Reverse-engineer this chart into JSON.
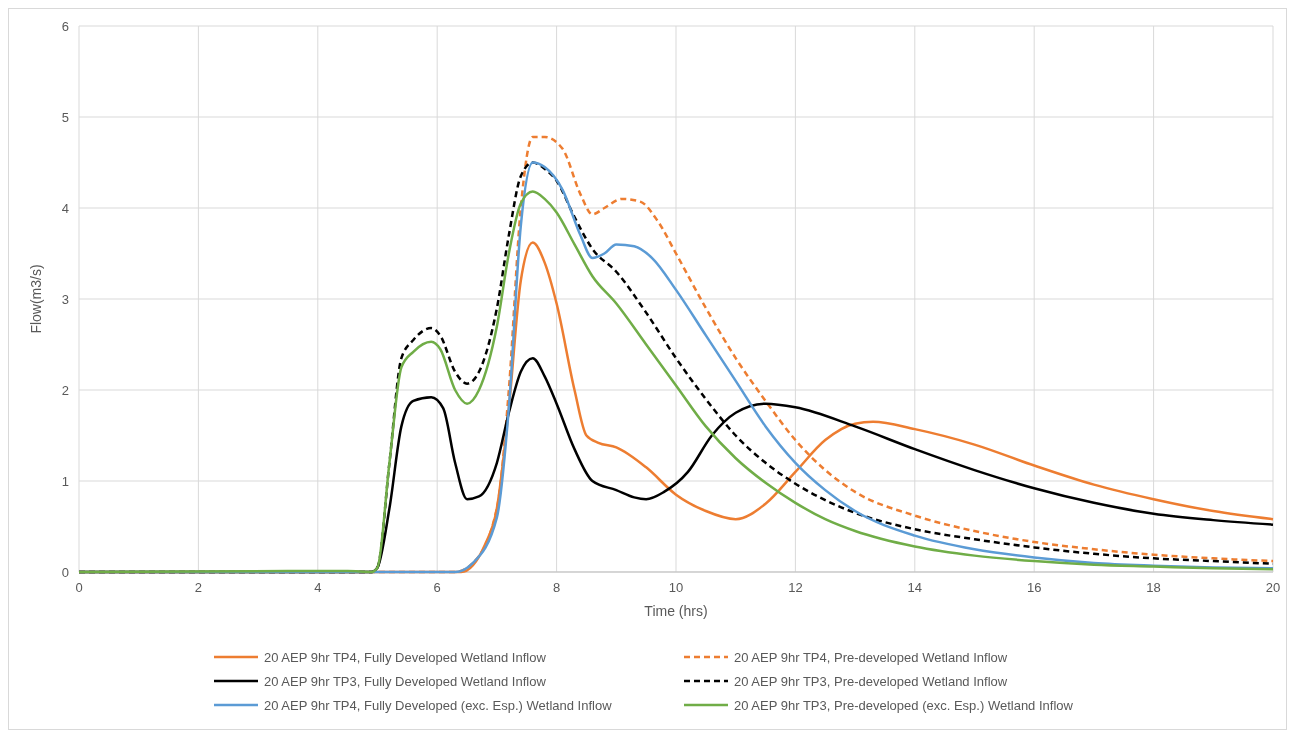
{
  "chart_data": {
    "type": "line",
    "xlabel": "Time (hrs)",
    "ylabel": "Flow(m3/s)",
    "xlim": [
      0,
      20
    ],
    "xticks": [
      0,
      2,
      4,
      6,
      8,
      10,
      12,
      14,
      16,
      18,
      20
    ],
    "ylim": [
      0,
      6
    ],
    "yticks": [
      0,
      1,
      2,
      3,
      4,
      5,
      6
    ],
    "grid": true,
    "legend": "bottom",
    "marker": "none",
    "series": [
      {
        "name": "20 AEP 9hr TP4, Fully Developed Wetland Inflow",
        "color": "#ed7d31",
        "line_style": "solid",
        "x": [
          0,
          4,
          6.4,
          6.8,
          7.0,
          7.2,
          7.4,
          7.6,
          7.8,
          8.0,
          8.3,
          8.5,
          8.7,
          9.0,
          9.5,
          10,
          10.5,
          11,
          11.5,
          12,
          12.5,
          13,
          13.3,
          14,
          15,
          16,
          17,
          18,
          19,
          20
        ],
        "values": [
          0,
          0,
          0,
          0.3,
          0.7,
          1.8,
          3.2,
          3.62,
          3.4,
          2.95,
          2.0,
          1.5,
          1.42,
          1.37,
          1.15,
          0.85,
          0.67,
          0.58,
          0.75,
          1.1,
          1.45,
          1.63,
          1.65,
          1.57,
          1.4,
          1.17,
          0.96,
          0.8,
          0.67,
          0.58
        ]
      },
      {
        "name": "20 AEP 9hr TP4, Pre-developed Wetland Inflow",
        "color": "#ed7d31",
        "line_style": "dashed",
        "x": [
          0,
          6.3,
          6.6,
          7.0,
          7.2,
          7.4,
          7.6,
          7.8,
          8.1,
          8.4,
          8.6,
          8.8,
          9.1,
          9.4,
          9.7,
          10,
          10.5,
          11,
          11.5,
          12,
          12.5,
          13,
          14,
          15,
          16,
          17,
          18,
          19,
          20
        ],
        "values": [
          0,
          0,
          0.1,
          0.7,
          2.0,
          4.0,
          4.78,
          4.78,
          4.65,
          4.15,
          3.93,
          4.0,
          4.1,
          4.07,
          3.85,
          3.5,
          2.9,
          2.35,
          1.88,
          1.45,
          1.12,
          0.88,
          0.62,
          0.45,
          0.33,
          0.25,
          0.19,
          0.15,
          0.12
        ]
      },
      {
        "name": "20 AEP 9hr TP3, Fully Developed Wetland Inflow",
        "color": "#000000",
        "line_style": "solid",
        "x": [
          0,
          4.9,
          5.0,
          5.2,
          5.4,
          5.6,
          5.9,
          6.1,
          6.3,
          6.5,
          6.7,
          7.0,
          7.2,
          7.4,
          7.6,
          7.8,
          8.0,
          8.3,
          8.6,
          9.0,
          9.3,
          9.5,
          9.8,
          10.2,
          10.6,
          11,
          11.5,
          12,
          13,
          14,
          15,
          16,
          17,
          18,
          19,
          20
        ],
        "values": [
          0,
          0,
          0.05,
          0.7,
          1.6,
          1.88,
          1.92,
          1.8,
          1.2,
          0.8,
          0.83,
          1.2,
          1.75,
          2.2,
          2.35,
          2.15,
          1.85,
          1.35,
          1.0,
          0.9,
          0.82,
          0.8,
          0.88,
          1.1,
          1.5,
          1.75,
          1.85,
          1.81,
          1.6,
          1.35,
          1.12,
          0.92,
          0.76,
          0.64,
          0.57,
          0.52
        ]
      },
      {
        "name": "20 AEP 9hr TP3, Pre-developed Wetland Inflow",
        "color": "#000000",
        "line_style": "dashed",
        "x": [
          0,
          4.9,
          5.0,
          5.2,
          5.4,
          5.6,
          5.9,
          6.05,
          6.3,
          6.5,
          6.7,
          7.0,
          7.2,
          7.4,
          7.6,
          7.8,
          8.0,
          8.3,
          8.6,
          9.0,
          9.5,
          10,
          10.5,
          11,
          11.5,
          12,
          12.5,
          13,
          14,
          15,
          16,
          17,
          18,
          19,
          20
        ],
        "values": [
          0,
          0,
          0.05,
          1.2,
          2.35,
          2.55,
          2.68,
          2.6,
          2.2,
          2.07,
          2.2,
          2.9,
          3.7,
          4.35,
          4.5,
          4.43,
          4.3,
          3.9,
          3.55,
          3.3,
          2.85,
          2.35,
          1.9,
          1.5,
          1.2,
          0.97,
          0.79,
          0.65,
          0.47,
          0.36,
          0.27,
          0.2,
          0.15,
          0.12,
          0.09
        ]
      },
      {
        "name": "20 AEP 9hr TP4, Fully Developed (exc. Esp.) Wetland Inflow",
        "color": "#5b9bd5",
        "line_style": "solid",
        "x": [
          0,
          6.3,
          6.6,
          7.0,
          7.2,
          7.4,
          7.6,
          7.8,
          8.1,
          8.4,
          8.6,
          8.8,
          9.0,
          9.3,
          9.6,
          10,
          10.5,
          11,
          11.5,
          12,
          12.5,
          13,
          14,
          15,
          16,
          17,
          18,
          19,
          20
        ],
        "values": [
          0,
          0,
          0.1,
          0.6,
          1.8,
          3.8,
          4.5,
          4.45,
          4.2,
          3.7,
          3.45,
          3.5,
          3.6,
          3.58,
          3.45,
          3.1,
          2.6,
          2.1,
          1.6,
          1.2,
          0.9,
          0.67,
          0.4,
          0.25,
          0.16,
          0.1,
          0.07,
          0.05,
          0.04
        ]
      },
      {
        "name": "20 AEP 9hr TP3, Pre-developed (exc. Esp.) Wetland Inflow",
        "color": "#70ad47",
        "line_style": "solid",
        "x": [
          0,
          3.5,
          4.5,
          4.9,
          5.0,
          5.2,
          5.4,
          5.6,
          5.9,
          6.05,
          6.3,
          6.5,
          6.7,
          7.0,
          7.2,
          7.4,
          7.6,
          7.8,
          8.0,
          8.3,
          8.6,
          9.0,
          9.5,
          10,
          10.5,
          11,
          11.5,
          12,
          12.5,
          13,
          14,
          15,
          16,
          17,
          18,
          19,
          20
        ],
        "values": [
          0,
          0.01,
          0.01,
          0,
          0.05,
          1.2,
          2.25,
          2.42,
          2.53,
          2.45,
          2.0,
          1.85,
          2.0,
          2.7,
          3.5,
          4.05,
          4.18,
          4.1,
          3.95,
          3.6,
          3.25,
          2.95,
          2.5,
          2.05,
          1.6,
          1.25,
          0.98,
          0.76,
          0.58,
          0.45,
          0.28,
          0.18,
          0.12,
          0.08,
          0.06,
          0.04,
          0.03
        ]
      }
    ]
  }
}
